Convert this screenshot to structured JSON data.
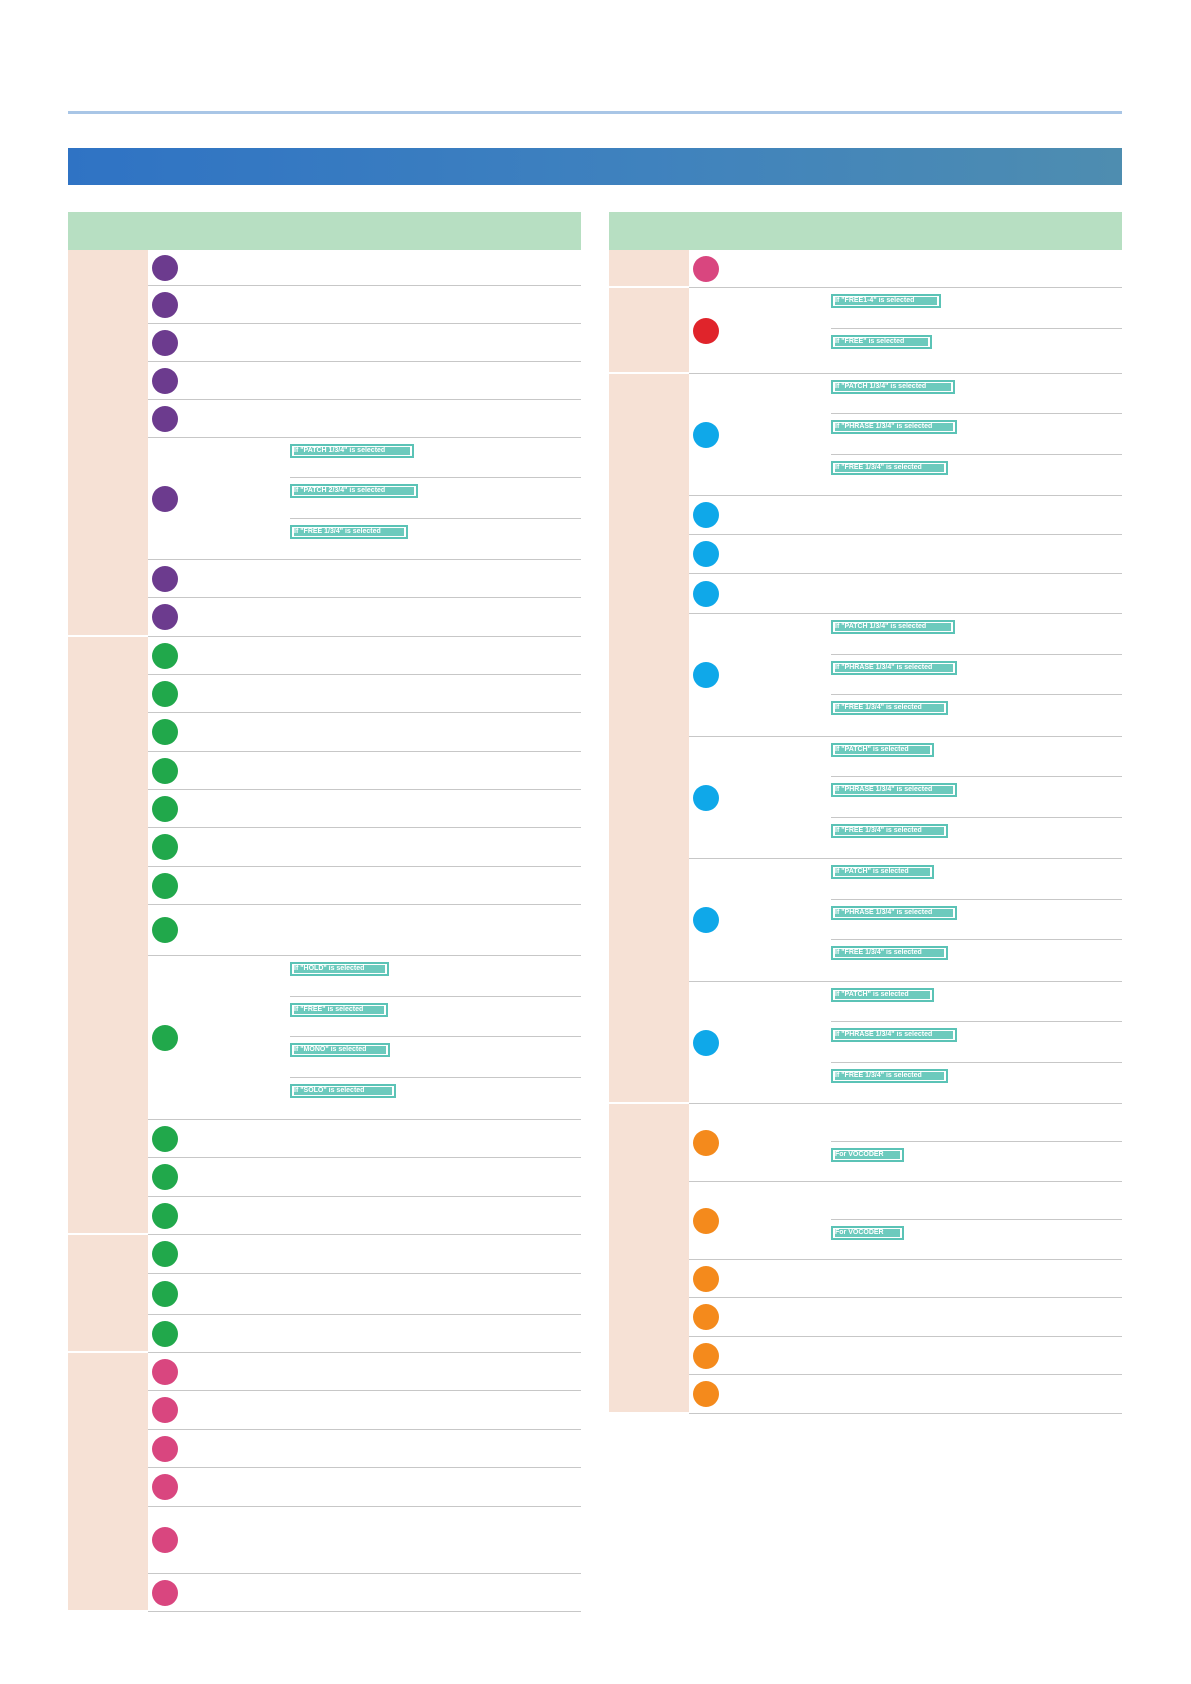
{
  "header": {
    "title": "",
    "section_title": ""
  },
  "colors": {
    "rule": "#a9c6e6",
    "banner": "#3f82be",
    "column_header": "#b7dfc2",
    "group_label_bg": "#f6e1d5",
    "tag": "#5bc3b6",
    "purple": "#6c3b8e",
    "green": "#21a84b",
    "pink": "#d9467f",
    "red": "#e0242b",
    "blue": "#0fa8e9",
    "orange": "#f48a1c"
  },
  "left_column": {
    "header": "",
    "groups": [
      {
        "label": "",
        "items": [
          {
            "color": "purple",
            "h": 36
          },
          {
            "color": "purple",
            "h": 38
          },
          {
            "color": "purple",
            "h": 38
          },
          {
            "color": "purple",
            "h": 38
          },
          {
            "color": "purple",
            "h": 38
          },
          {
            "color": "purple",
            "h": 122,
            "subs": [
              {
                "h": 40,
                "tag": "If \"PATCH 1/3/4\" is selected",
                "tw": 124
              },
              {
                "h": 41,
                "tag": "If \"PATCH 2/3/4\" is selected",
                "tw": 128
              },
              {
                "h": 41,
                "tag": "If \"FREE 1/3/4\" is selected",
                "tw": 118
              }
            ]
          },
          {
            "color": "purple",
            "h": 38
          },
          {
            "color": "purple",
            "h": 39
          }
        ]
      },
      {
        "label": "",
        "items": [
          {
            "color": "green",
            "h": 38
          },
          {
            "color": "green",
            "h": 38
          },
          {
            "color": "green",
            "h": 39
          },
          {
            "color": "green",
            "h": 38
          },
          {
            "color": "green",
            "h": 38
          },
          {
            "color": "green",
            "h": 39
          },
          {
            "color": "green",
            "h": 38
          },
          {
            "color": "green",
            "h": 51
          },
          {
            "color": "green",
            "h": 164,
            "subs": [
              {
                "h": 41,
                "tag": "If \"HOLD\" is selected",
                "tw": 99
              },
              {
                "h": 40,
                "tag": "If \"FREE\" is selected",
                "tw": 98
              },
              {
                "h": 41,
                "tag": "If \"MONO\" is selected",
                "tw": 100
              },
              {
                "h": 42,
                "tag": "If \"SOLO\" is selected",
                "tw": 106
              }
            ]
          },
          {
            "color": "green",
            "h": 38
          },
          {
            "color": "green",
            "h": 39
          },
          {
            "color": "green",
            "h": 38
          }
        ]
      },
      {
        "label": "",
        "items": [
          {
            "color": "green",
            "h": 39
          },
          {
            "color": "green",
            "h": 41
          },
          {
            "color": "green",
            "h": 38
          }
        ]
      },
      {
        "label": "",
        "items": [
          {
            "color": "pink",
            "h": 38
          },
          {
            "color": "pink",
            "h": 39
          },
          {
            "color": "pink",
            "h": 38
          },
          {
            "color": "pink",
            "h": 39
          },
          {
            "color": "pink",
            "h": 67
          },
          {
            "color": "pink",
            "h": 38
          }
        ]
      }
    ]
  },
  "right_column": {
    "header": "",
    "groups": [
      {
        "label": "",
        "items": [
          {
            "color": "pink",
            "h": 38
          }
        ]
      },
      {
        "label": "",
        "items": [
          {
            "color": "red",
            "h": 86,
            "subs": [
              {
                "h": 41,
                "tag": "If \"FREE1-4\" is selected",
                "tw": 110
              },
              {
                "h": 45,
                "tag": "If \"FREE\" is selected",
                "tw": 101
              }
            ]
          }
        ]
      },
      {
        "label": "",
        "items": [
          {
            "color": "blue",
            "h": 122,
            "subs": [
              {
                "h": 40,
                "tag": "If \"PATCH 1/3/4\" is selected",
                "tw": 124
              },
              {
                "h": 41,
                "tag": "If \"PHRASE 1/3/4\" is selected",
                "tw": 126
              },
              {
                "h": 41,
                "tag": "If \"FREE 1/3/4\" is selected",
                "tw": 117
              }
            ]
          },
          {
            "color": "blue",
            "h": 39
          },
          {
            "color": "blue",
            "h": 39
          },
          {
            "color": "blue",
            "h": 40
          },
          {
            "color": "blue",
            "h": 123,
            "subs": [
              {
                "h": 41,
                "tag": "If \"PATCH 1/3/4\" is selected",
                "tw": 124
              },
              {
                "h": 40,
                "tag": "If \"PHRASE 1/3/4\" is selected",
                "tw": 126
              },
              {
                "h": 42,
                "tag": "If \"FREE 1/3/4\" is selected",
                "tw": 117
              }
            ]
          },
          {
            "color": "blue",
            "h": 122,
            "subs": [
              {
                "h": 40,
                "tag": "If \"PATCH\" is selected",
                "tw": 103
              },
              {
                "h": 41,
                "tag": "If \"PHRASE 1/3/4\" is selected",
                "tw": 126
              },
              {
                "h": 41,
                "tag": "If \"FREE 1/3/4\" is selected",
                "tw": 117
              }
            ]
          },
          {
            "color": "blue",
            "h": 123,
            "subs": [
              {
                "h": 41,
                "tag": "If \"PATCH\" is selected",
                "tw": 103
              },
              {
                "h": 40,
                "tag": "If \"PHRASE 1/3/4\" is selected",
                "tw": 126
              },
              {
                "h": 42,
                "tag": "If \"FREE 1/3/4\" is selected",
                "tw": 117
              }
            ]
          },
          {
            "color": "blue",
            "h": 122,
            "subs": [
              {
                "h": 40,
                "tag": "If \"PATCH\" is selected",
                "tw": 103
              },
              {
                "h": 41,
                "tag": "If \"PHRASE 1/3/4\" is selected",
                "tw": 126
              },
              {
                "h": 41,
                "tag": "If \"FREE 1/3/4\" is selected",
                "tw": 117
              }
            ]
          }
        ]
      },
      {
        "label": "",
        "items": [
          {
            "color": "orange",
            "h": 78,
            "subs": [
              {
                "h": 38,
                "tag": ""
              },
              {
                "h": 40,
                "tag": "For VOCODER",
                "tw": 73
              }
            ]
          },
          {
            "color": "orange",
            "h": 78,
            "subs": [
              {
                "h": 38,
                "tag": ""
              },
              {
                "h": 40,
                "tag": "For VOCODER",
                "tw": 73
              }
            ]
          },
          {
            "color": "orange",
            "h": 38
          },
          {
            "color": "orange",
            "h": 39
          },
          {
            "color": "orange",
            "h": 38
          },
          {
            "color": "orange",
            "h": 39
          }
        ]
      }
    ]
  }
}
